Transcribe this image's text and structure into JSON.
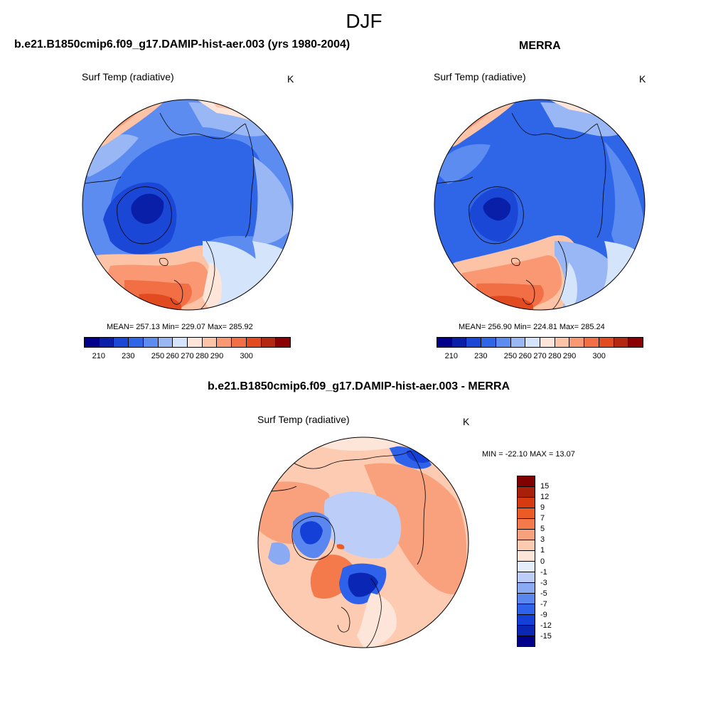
{
  "season_title": "DJF",
  "palette": {
    "abs": [
      "#00008b",
      "#0a1fa8",
      "#1a47d6",
      "#2f66e8",
      "#5c8cf0",
      "#98b7f4",
      "#d4e4fb",
      "#fde6d9",
      "#fcc3a6",
      "#f99872",
      "#f26e44",
      "#e24a20",
      "#b42710",
      "#8b0000"
    ],
    "diff": [
      "#00008b",
      "#0a26b4",
      "#1440d8",
      "#2e62ea",
      "#5a86f0",
      "#8aaaf4",
      "#bccef8",
      "#e4eefc",
      "#fde6d9",
      "#fccbb1",
      "#f9a17c",
      "#f47a4c",
      "#ec5a26",
      "#d63a10",
      "#a8200a",
      "#800000"
    ]
  },
  "panels": {
    "left": {
      "title": "b.e21.B1850cmip6.f09_g17.DAMIP-hist-aer.003 (yrs 1980-2004)",
      "variable": "Surf Temp (radiative)",
      "units": "K",
      "stats": "MEAN= 257.13  Min= 229.07  Max= 285.92",
      "colorbar_ticks": [
        "210",
        "230",
        "250",
        "260",
        "270",
        "280",
        "290",
        "300"
      ]
    },
    "right": {
      "title": "MERRA",
      "variable": "Surf Temp (radiative)",
      "units": "K",
      "stats": "MEAN= 256.90  Min= 224.81  Max= 285.24",
      "colorbar_ticks": [
        "210",
        "230",
        "250",
        "260",
        "270",
        "280",
        "290",
        "300"
      ]
    },
    "diff": {
      "title": "b.e21.B1850cmip6.f09_g17.DAMIP-hist-aer.003 - MERRA",
      "variable": "Surf Temp (radiative)",
      "units": "K",
      "stats": "MIN = -22.10 MAX =  13.07",
      "colorbar_ticks": [
        "15",
        "12",
        "9",
        "7",
        "5",
        "3",
        "1",
        "0",
        "-1",
        "-3",
        "-5",
        "-7",
        "-9",
        "-12",
        "-15"
      ]
    }
  }
}
